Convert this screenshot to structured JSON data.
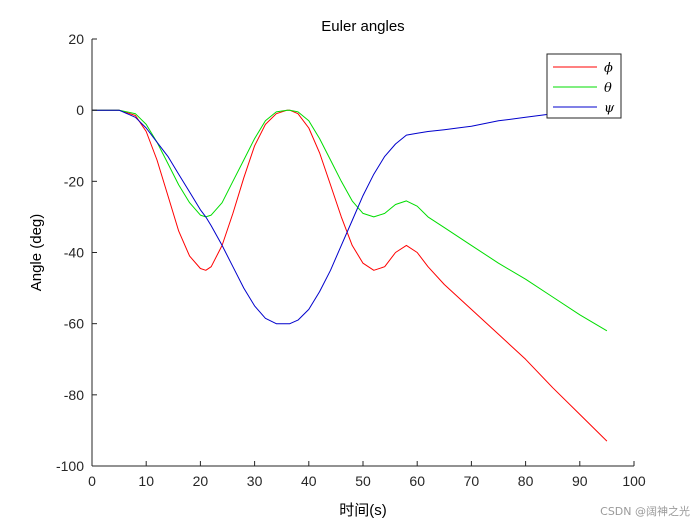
{
  "chart_data": {
    "type": "line",
    "title": "Euler angles",
    "xlabel": "时间(s)",
    "ylabel": "Angle (deg)",
    "xlim": [
      0,
      100
    ],
    "ylim": [
      -100,
      20
    ],
    "xticks": [
      0,
      10,
      20,
      30,
      40,
      50,
      60,
      70,
      80,
      90,
      100
    ],
    "yticks": [
      20,
      0,
      -20,
      -40,
      -60,
      -80,
      -100
    ],
    "grid": false,
    "legend_position": "top-right",
    "x": [
      0,
      5,
      8,
      10,
      12,
      14,
      16,
      18,
      20,
      21,
      22,
      24,
      26,
      28,
      30,
      32,
      34,
      36,
      36.5,
      38,
      40,
      42,
      44,
      46,
      48,
      50,
      52,
      54,
      56,
      58,
      60,
      62,
      65,
      70,
      75,
      80,
      85,
      90,
      95
    ],
    "series": [
      {
        "name": "ϕ",
        "color": "#ff0000",
        "values": [
          0,
          0,
          -1.5,
          -6,
          -14,
          -24,
          -34,
          -41,
          -44.5,
          -45,
          -44,
          -38,
          -29,
          -19,
          -10,
          -4,
          -1,
          0,
          0,
          -1,
          -5,
          -12,
          -21,
          -30,
          -38,
          -43,
          -45,
          -44,
          -40,
          -38,
          -40,
          -44,
          -49,
          -56,
          -63,
          -70,
          -78,
          -85.5,
          -93
        ]
      },
      {
        "name": "θ",
        "color": "#00dd00",
        "values": [
          0,
          0,
          -1,
          -4,
          -9,
          -15,
          -21,
          -26,
          -29.5,
          -30,
          -29.5,
          -26,
          -20,
          -14,
          -8,
          -3,
          -0.5,
          0,
          0,
          -0.5,
          -3,
          -8,
          -14,
          -20,
          -25.5,
          -29,
          -30,
          -29,
          -26.5,
          -25.5,
          -27,
          -30,
          -33,
          -38,
          -43,
          -47.5,
          -52.5,
          -57.5,
          -62
        ]
      },
      {
        "name": "ψ",
        "color": "#0000cc",
        "values": [
          0,
          0,
          -2,
          -5,
          -9,
          -13,
          -18,
          -23,
          -28,
          -30,
          -32.5,
          -38,
          -44,
          -50,
          -55,
          -58.5,
          -60,
          -60,
          -60,
          -59,
          -56,
          -51,
          -45,
          -38,
          -31,
          -24,
          -18,
          -13,
          -9.5,
          -7,
          -6.5,
          -6,
          -5.5,
          -4.5,
          -3,
          -2,
          -1,
          0,
          1
        ]
      }
    ]
  },
  "watermark": "CSDN @阔神之光"
}
